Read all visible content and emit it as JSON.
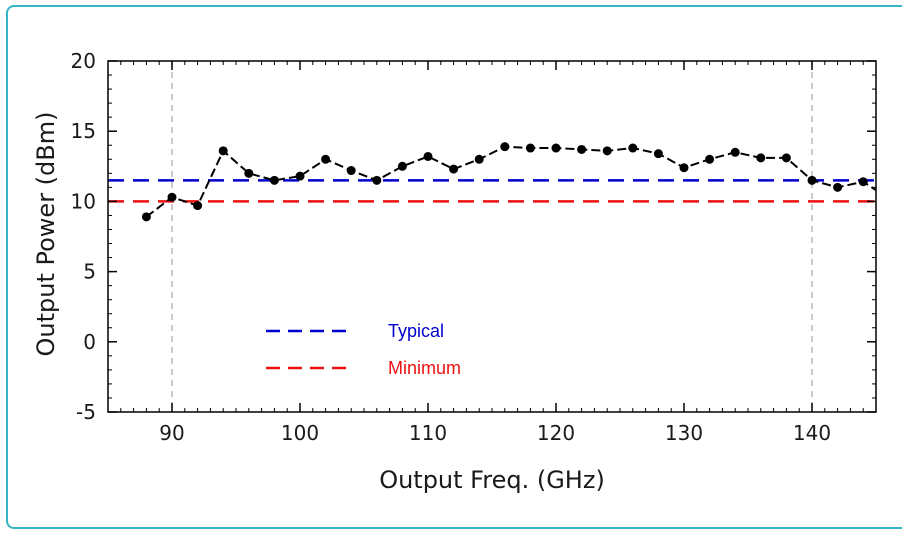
{
  "chart_data": {
    "type": "line",
    "xlabel": "Output Freq. (GHz)",
    "ylabel": "Output Power (dBm)",
    "xlim": [
      85,
      145
    ],
    "ylim": [
      -5,
      20
    ],
    "x_ticks": [
      90,
      100,
      110,
      120,
      130,
      140
    ],
    "y_ticks": [
      -5,
      0,
      5,
      10,
      15,
      20
    ],
    "x_minor_step": 1,
    "y_minor_step": 1,
    "grid": false,
    "vertical_markers": [
      90,
      140
    ],
    "reference_lines": [
      {
        "name": "Typical",
        "value": 11.5,
        "color": "#0000cc"
      },
      {
        "name": "Minimum",
        "value": 10,
        "color": "#ee1111"
      }
    ],
    "legend_position": "bottom-left",
    "series": [
      {
        "x": [
          88,
          90,
          92,
          94,
          96,
          98,
          100,
          102,
          104,
          106,
          108,
          110,
          112,
          114,
          116,
          118,
          120,
          122,
          124,
          126,
          128,
          130,
          132,
          134,
          136,
          138,
          140,
          142,
          144,
          145
        ],
        "y": [
          8.9,
          10.3,
          9.7,
          13.6,
          12.0,
          11.5,
          11.8,
          13.0,
          12.2,
          11.5,
          12.5,
          13.2,
          12.3,
          13.0,
          13.9,
          13.8,
          13.8,
          13.7,
          13.6,
          13.8,
          13.4,
          12.4,
          13.0,
          13.5,
          13.1,
          13.1,
          11.5,
          11.0,
          11.4,
          10.8
        ],
        "color": "#000000"
      }
    ]
  }
}
